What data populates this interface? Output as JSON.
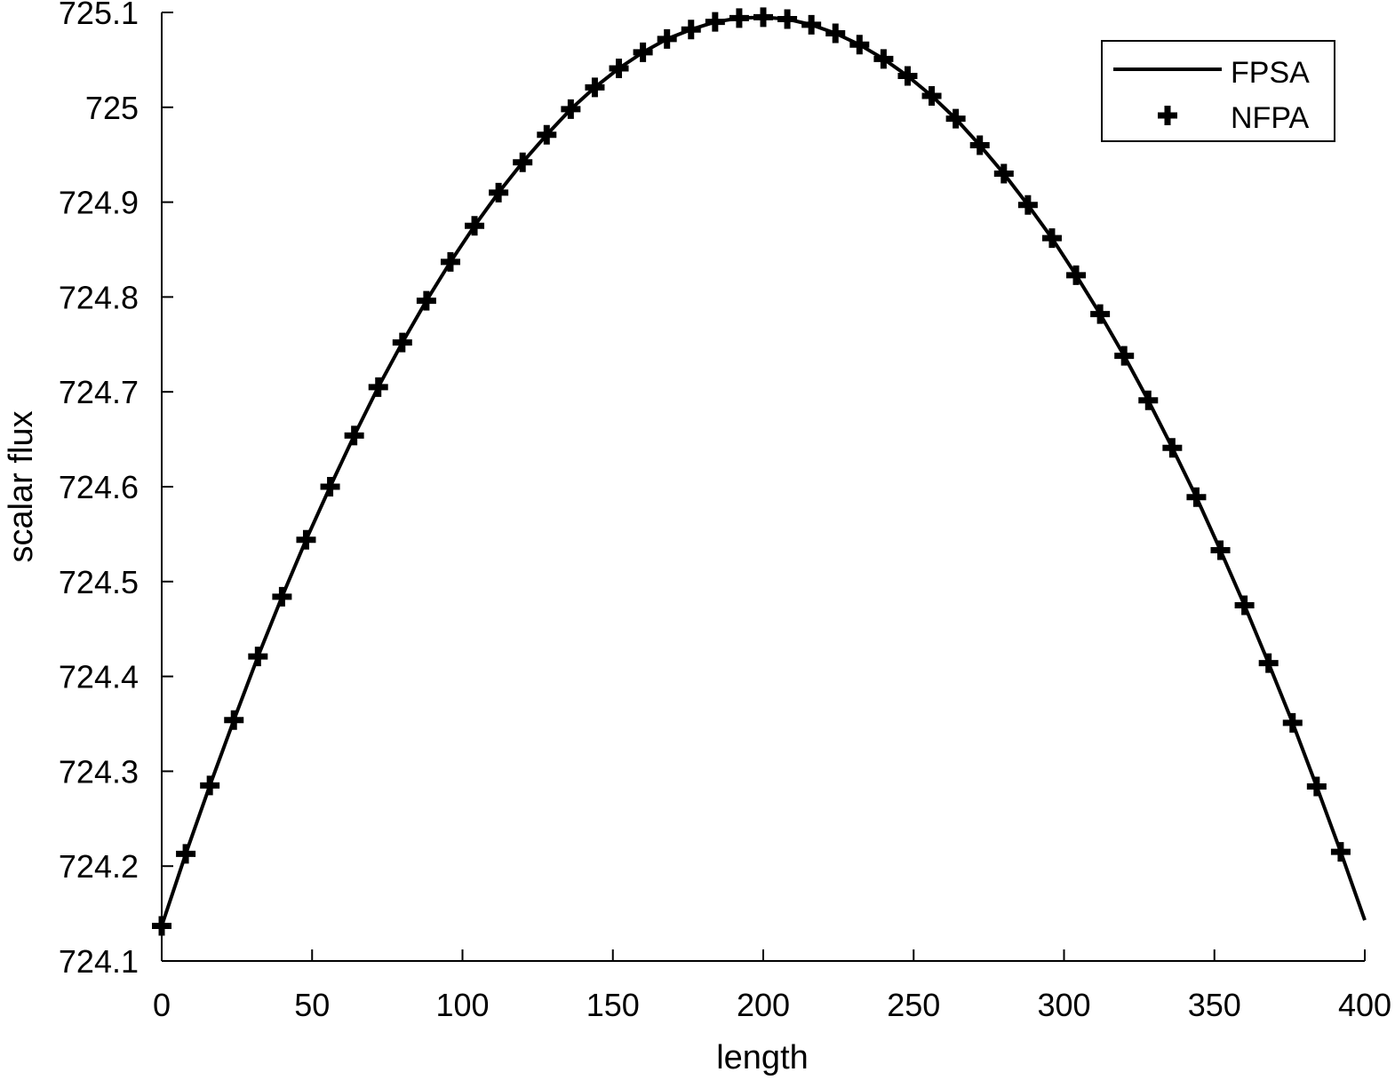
{
  "chart_data": {
    "type": "line",
    "xlabel": "length",
    "ylabel": "scalar flux",
    "xlim": [
      0,
      400
    ],
    "ylim": [
      724.1,
      725.1
    ],
    "x_ticks": [
      0,
      50,
      100,
      150,
      200,
      250,
      300,
      350,
      400
    ],
    "y_ticks": [
      724.1,
      724.2,
      724.3,
      724.4,
      724.5,
      724.6,
      724.7,
      724.8,
      724.9,
      725,
      725.1
    ],
    "x_tick_labels": [
      "0",
      "50",
      "100",
      "150",
      "200",
      "250",
      "300",
      "350",
      "400"
    ],
    "y_tick_labels": [
      "724.1",
      "724.2",
      "724.3",
      "724.4",
      "724.5",
      "724.6",
      "724.7",
      "724.8",
      "724.9",
      "725",
      "725.1"
    ],
    "grid": false,
    "legend_position": "top-right",
    "series": [
      {
        "name": "FPSA",
        "style": "line",
        "color": "#000000",
        "x": [
          0,
          8,
          16,
          24,
          32,
          40,
          48,
          56,
          64,
          72,
          80,
          88,
          96,
          104,
          112,
          120,
          128,
          136,
          144,
          152,
          160,
          168,
          176,
          184,
          192,
          200,
          208,
          216,
          224,
          232,
          240,
          248,
          256,
          264,
          272,
          280,
          288,
          296,
          304,
          312,
          320,
          328,
          336,
          344,
          352,
          360,
          368,
          376,
          384,
          392,
          400
        ],
        "y": [
          724.137,
          724.213,
          724.285,
          724.354,
          724.421,
          724.484,
          724.544,
          724.6,
          724.654,
          724.705,
          724.752,
          724.796,
          724.837,
          724.875,
          724.91,
          724.942,
          724.971,
          724.998,
          725.021,
          725.041,
          725.058,
          725.072,
          725.082,
          725.09,
          725.094,
          725.095,
          725.093,
          725.087,
          725.078,
          725.066,
          725.051,
          725.033,
          725.012,
          724.988,
          724.96,
          724.93,
          724.897,
          724.862,
          724.823,
          724.782,
          724.738,
          724.691,
          724.641,
          724.589,
          724.533,
          724.475,
          724.414,
          724.351,
          724.284,
          724.215,
          724.143
        ]
      },
      {
        "name": "NFPA",
        "style": "plus-marker",
        "color": "#000000",
        "x": [
          0,
          8,
          16,
          24,
          32,
          40,
          48,
          56,
          64,
          72,
          80,
          88,
          96,
          104,
          112,
          120,
          128,
          136,
          144,
          152,
          160,
          168,
          176,
          184,
          192,
          200,
          208,
          216,
          224,
          232,
          240,
          248,
          256,
          264,
          272,
          280,
          288,
          296,
          304,
          312,
          320,
          328,
          336,
          344,
          352,
          360,
          368,
          376,
          384,
          392
        ],
        "y": [
          724.137,
          724.213,
          724.285,
          724.354,
          724.421,
          724.484,
          724.544,
          724.6,
          724.654,
          724.705,
          724.752,
          724.796,
          724.837,
          724.875,
          724.91,
          724.942,
          724.971,
          724.998,
          725.021,
          725.041,
          725.058,
          725.072,
          725.082,
          725.09,
          725.094,
          725.095,
          725.093,
          725.087,
          725.078,
          725.066,
          725.051,
          725.033,
          725.012,
          724.988,
          724.96,
          724.93,
          724.897,
          724.862,
          724.823,
          724.782,
          724.738,
          724.691,
          724.641,
          724.589,
          724.533,
          724.475,
          724.414,
          724.351,
          724.284,
          724.215
        ]
      }
    ]
  }
}
